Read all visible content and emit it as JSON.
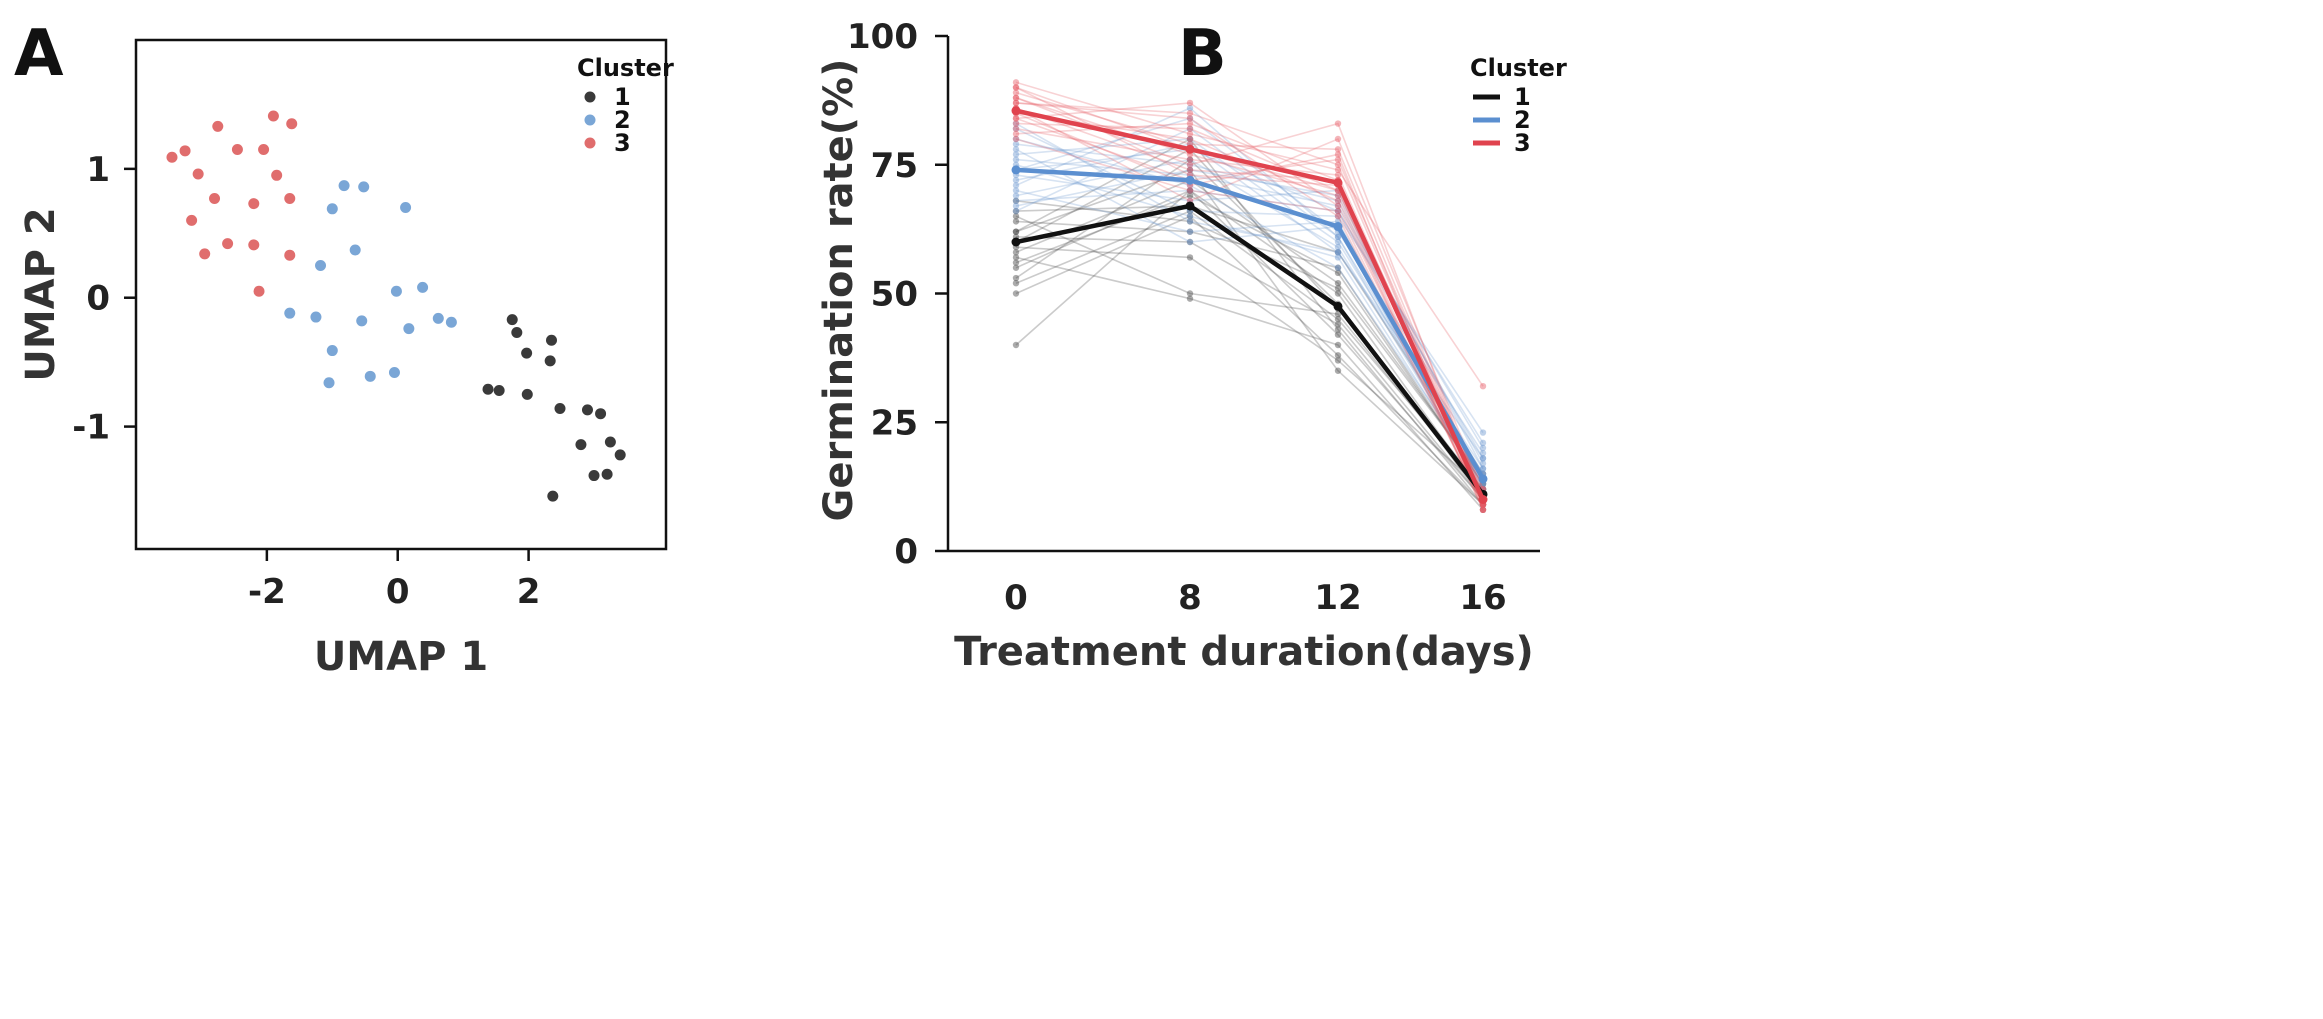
{
  "figure": {
    "panel_a_letter": "A",
    "panel_b_letter": "B"
  },
  "chart_data": [
    {
      "type": "scatter",
      "title": "",
      "xlabel": "UMAP 1",
      "ylabel": "UMAP 2",
      "xlim": [
        -4.0,
        4.1
      ],
      "ylim": [
        -1.95,
        2.0
      ],
      "xticks": [
        -2,
        0,
        2
      ],
      "xtick_labels": [
        "-2",
        "0",
        "2"
      ],
      "yticks": [
        -1,
        0,
        1
      ],
      "ytick_labels": [
        "-1",
        "0",
        "1"
      ],
      "grid": false,
      "legend_title": "Cluster",
      "legend_position": "top-right",
      "series": [
        {
          "name": "1",
          "color": "#3a3a3a",
          "points": [
            [
              1.75,
              -0.17
            ],
            [
              1.82,
              -0.27
            ],
            [
              2.35,
              -0.33
            ],
            [
              1.97,
              -0.43
            ],
            [
              2.33,
              -0.49
            ],
            [
              1.38,
              -0.71
            ],
            [
              1.55,
              -0.72
            ],
            [
              1.98,
              -0.75
            ],
            [
              2.48,
              -0.86
            ],
            [
              2.9,
              -0.87
            ],
            [
              3.1,
              -0.9
            ],
            [
              3.25,
              -1.12
            ],
            [
              3.4,
              -1.22
            ],
            [
              2.8,
              -1.14
            ],
            [
              3.0,
              -1.38
            ],
            [
              3.2,
              -1.37
            ],
            [
              2.37,
              -1.54
            ]
          ]
        },
        {
          "name": "2",
          "color": "#7aa6d6",
          "points": [
            [
              -0.82,
              0.87
            ],
            [
              -0.52,
              0.86
            ],
            [
              -1.0,
              0.69
            ],
            [
              0.12,
              0.7
            ],
            [
              -0.65,
              0.37
            ],
            [
              -1.18,
              0.25
            ],
            [
              -0.02,
              0.05
            ],
            [
              0.38,
              0.08
            ],
            [
              -1.65,
              -0.12
            ],
            [
              -1.25,
              -0.15
            ],
            [
              -0.55,
              -0.18
            ],
            [
              0.62,
              -0.16
            ],
            [
              0.82,
              -0.19
            ],
            [
              0.17,
              -0.24
            ],
            [
              -1.0,
              -0.41
            ],
            [
              -0.42,
              -0.61
            ],
            [
              -0.05,
              -0.58
            ],
            [
              -1.05,
              -0.66
            ]
          ]
        },
        {
          "name": "3",
          "color": "#e06d6d",
          "points": [
            [
              -1.9,
              1.41
            ],
            [
              -2.75,
              1.33
            ],
            [
              -1.62,
              1.35
            ],
            [
              -3.25,
              1.14
            ],
            [
              -2.45,
              1.15
            ],
            [
              -2.05,
              1.15
            ],
            [
              -3.45,
              1.09
            ],
            [
              -1.85,
              0.95
            ],
            [
              -3.05,
              0.96
            ],
            [
              -2.8,
              0.77
            ],
            [
              -1.65,
              0.77
            ],
            [
              -2.2,
              0.73
            ],
            [
              -3.15,
              0.6
            ],
            [
              -2.6,
              0.42
            ],
            [
              -2.2,
              0.41
            ],
            [
              -2.95,
              0.34
            ],
            [
              -1.65,
              0.33
            ],
            [
              -2.12,
              0.05
            ]
          ]
        }
      ]
    },
    {
      "type": "line",
      "title": "",
      "xlabel": "Treatment duration(days)",
      "ylabel": "Germination rate(%)",
      "categories": [
        "0",
        "8",
        "12",
        "16"
      ],
      "ylim": [
        0,
        100
      ],
      "yticks": [
        0,
        25,
        50,
        75,
        100
      ],
      "grid": false,
      "legend_title": "Cluster",
      "legend_position": "top-right",
      "series": [
        {
          "name": "1",
          "color": "#111111",
          "values": [
            60,
            67,
            47.5,
            11
          ]
        },
        {
          "name": "2",
          "color": "#5b8fd0",
          "values": [
            74,
            72,
            63,
            14
          ]
        },
        {
          "name": "3",
          "color": "#e0434e",
          "values": [
            85.5,
            78,
            71.5,
            10
          ]
        }
      ],
      "individual_lines": [
        {
          "cluster": "1",
          "color": "#444444",
          "values": [
            [
              40,
              70,
              42,
              10
            ],
            [
              50,
              65,
              38,
              9
            ],
            [
              52,
              66,
              45,
              12
            ],
            [
              55,
              70,
              50,
              11
            ],
            [
              57,
              49,
              40,
              8
            ],
            [
              58,
              72,
              52,
              14
            ],
            [
              60,
              78,
              47,
              12
            ],
            [
              61,
              60,
              44,
              10
            ],
            [
              62,
              74,
              35,
              9
            ],
            [
              64,
              62,
              55,
              13
            ],
            [
              65,
              50,
              46,
              11
            ],
            [
              66,
              67,
              58,
              15
            ],
            [
              53,
              76,
              48,
              10
            ],
            [
              59,
              57,
              37,
              12
            ],
            [
              68,
              64,
              51,
              14
            ],
            [
              62,
              80,
              43,
              9
            ],
            [
              56,
              69,
              54,
              13
            ]
          ]
        },
        {
          "cluster": "2",
          "color": "#6f9ad0",
          "values": [
            [
              66,
              82,
              61,
              15
            ],
            [
              68,
              70,
              66,
              18
            ],
            [
              69,
              76,
              59,
              13
            ],
            [
              70,
              62,
              64,
              14
            ],
            [
              72,
              79,
              58,
              16
            ],
            [
              73,
              68,
              70,
              12
            ],
            [
              74,
              84,
              62,
              19
            ],
            [
              75,
              65,
              57,
              13
            ],
            [
              76,
              73,
              67,
              20
            ],
            [
              77,
              80,
              60,
              15
            ],
            [
              78,
              60,
              63,
              11
            ],
            [
              79,
              75,
              68,
              17
            ],
            [
              80,
              71,
              55,
              14
            ],
            [
              82,
              66,
              65,
              23
            ],
            [
              71,
              86,
              61,
              12
            ],
            [
              67,
              74,
              69,
              16
            ],
            [
              83,
              64,
              58,
              18
            ],
            [
              74,
              78,
              66,
              21
            ]
          ]
        },
        {
          "cluster": "3",
          "color": "#e65c66",
          "values": [
            [
              80,
              70,
              66,
              9
            ],
            [
              82,
              76,
              73,
              10
            ],
            [
              83,
              82,
              70,
              8
            ],
            [
              84,
              72,
              76,
              11
            ],
            [
              85,
              80,
              68,
              9
            ],
            [
              86,
              74,
              72,
              12
            ],
            [
              87,
              85,
              75,
              10
            ],
            [
              88,
              77,
              69,
              8
            ],
            [
              89,
              79,
              78,
              11
            ],
            [
              90,
              73,
              71,
              9
            ],
            [
              91,
              81,
              74,
              32
            ],
            [
              84,
              87,
              67,
              10
            ],
            [
              86,
              68,
              80,
              12
            ],
            [
              81,
              83,
              72,
              9
            ],
            [
              88,
              75,
              83,
              10
            ],
            [
              90,
              78,
              70,
              11
            ],
            [
              85,
              71,
              77,
              8
            ],
            [
              87,
              84,
              65,
              9
            ]
          ]
        }
      ]
    }
  ]
}
